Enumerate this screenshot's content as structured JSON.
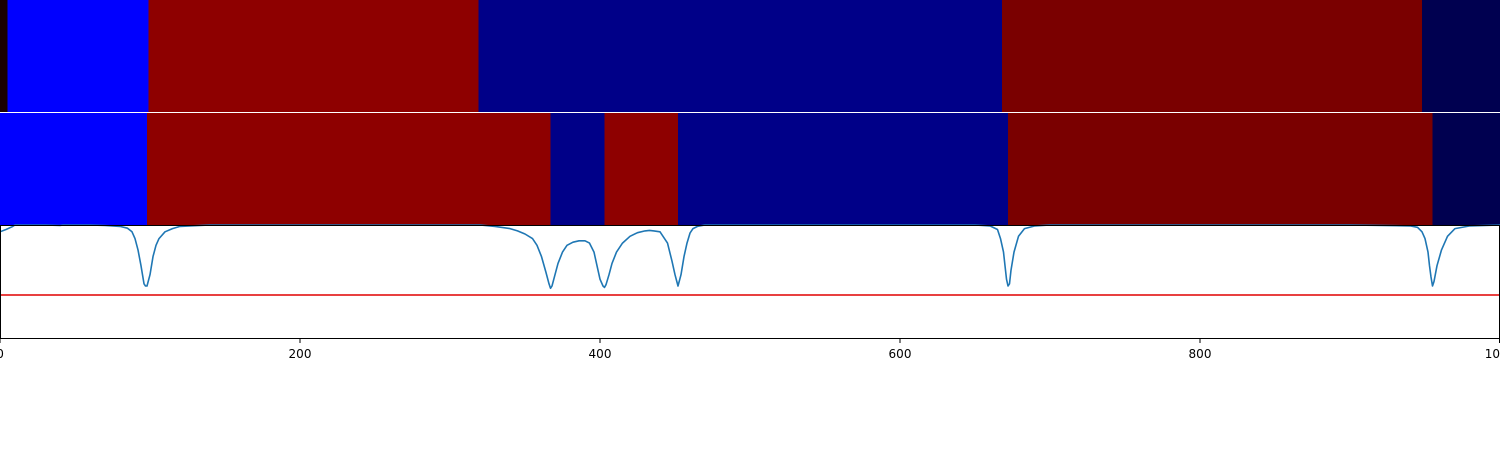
{
  "chart_data": [
    {
      "type": "heatmap",
      "name": "segmentation-strip-top",
      "segments": [
        {
          "start": 0,
          "end": 5,
          "color": "#1a0000"
        },
        {
          "start": 5,
          "end": 99,
          "color": "#0000ff"
        },
        {
          "start": 99,
          "end": 319,
          "color": "#8e0000"
        },
        {
          "start": 319,
          "end": 668,
          "color": "#000088"
        },
        {
          "start": 668,
          "end": 948,
          "color": "#7a0000"
        },
        {
          "start": 948,
          "end": 1000,
          "color": "#000050"
        }
      ]
    },
    {
      "type": "heatmap",
      "name": "segmentation-strip-bottom",
      "segments": [
        {
          "start": 0,
          "end": 98,
          "color": "#0000ff"
        },
        {
          "start": 98,
          "end": 367,
          "color": "#8e0000"
        },
        {
          "start": 367,
          "end": 403,
          "color": "#000088"
        },
        {
          "start": 403,
          "end": 452,
          "color": "#8e0000"
        },
        {
          "start": 452,
          "end": 672,
          "color": "#000088"
        },
        {
          "start": 672,
          "end": 955,
          "color": "#7a0000"
        },
        {
          "start": 955,
          "end": 1000,
          "color": "#000050"
        }
      ]
    },
    {
      "type": "line",
      "name": "boundary-score",
      "xlim": [
        0,
        1000
      ],
      "ylim": [
        -1.5,
        1.0
      ],
      "threshold": -0.55,
      "xticks": [
        0,
        200,
        400,
        600,
        800,
        1000
      ],
      "xtick_labels": [
        "0",
        "200",
        "400",
        "600",
        "800",
        "1000"
      ],
      "series": [
        {
          "name": "score",
          "color": "#1f77b4",
          "x": [
            0,
            4,
            8,
            10,
            20,
            30,
            40,
            42,
            50,
            60,
            70,
            80,
            85,
            88,
            90,
            92,
            94,
            95,
            96,
            97,
            98,
            100,
            102,
            104,
            106,
            110,
            115,
            120,
            140,
            200,
            250,
            300,
            320,
            330,
            340,
            345,
            350,
            355,
            358,
            361,
            364,
            366,
            367,
            368,
            370,
            372,
            375,
            378,
            382,
            386,
            390,
            393,
            396,
            398,
            400,
            402,
            403,
            404,
            406,
            408,
            411,
            415,
            420,
            425,
            430,
            433,
            436,
            440,
            445,
            448,
            450,
            452,
            454,
            456,
            458,
            460,
            462,
            465,
            470,
            480,
            500,
            600,
            650,
            660,
            665,
            667,
            669,
            670,
            671,
            672,
            673,
            674,
            676,
            679,
            683,
            690,
            700,
            800,
            900,
            940,
            945,
            948,
            950,
            952,
            953,
            954,
            955,
            956,
            958,
            961,
            965,
            970,
            980,
            1000
          ],
          "y": [
            0.85,
            0.9,
            0.96,
            1.0,
            1.01,
            1.02,
            0.99,
            1.0,
            1.0,
            1.0,
            0.99,
            0.97,
            0.93,
            0.85,
            0.7,
            0.45,
            0.1,
            -0.1,
            -0.3,
            -0.35,
            -0.35,
            -0.1,
            0.3,
            0.55,
            0.7,
            0.85,
            0.92,
            0.97,
            1.0,
            1.0,
            1.0,
            1.0,
            1.0,
            0.97,
            0.92,
            0.87,
            0.8,
            0.7,
            0.55,
            0.3,
            -0.05,
            -0.3,
            -0.4,
            -0.35,
            -0.1,
            0.15,
            0.4,
            0.55,
            0.62,
            0.65,
            0.65,
            0.6,
            0.4,
            0.1,
            -0.2,
            -0.35,
            -0.38,
            -0.32,
            -0.1,
            0.15,
            0.4,
            0.6,
            0.75,
            0.83,
            0.87,
            0.88,
            0.87,
            0.85,
            0.6,
            0.2,
            -0.1,
            -0.35,
            -0.1,
            0.3,
            0.6,
            0.82,
            0.92,
            0.97,
            1.0,
            1.0,
            1.0,
            1.0,
            1.0,
            0.98,
            0.9,
            0.7,
            0.4,
            0.1,
            -0.2,
            -0.35,
            -0.3,
            0.0,
            0.4,
            0.75,
            0.92,
            0.98,
            1.0,
            1.0,
            1.0,
            0.98,
            0.95,
            0.85,
            0.7,
            0.4,
            0.1,
            -0.15,
            -0.35,
            -0.25,
            0.1,
            0.45,
            0.75,
            0.92,
            0.98,
            1.0
          ]
        }
      ]
    }
  ]
}
